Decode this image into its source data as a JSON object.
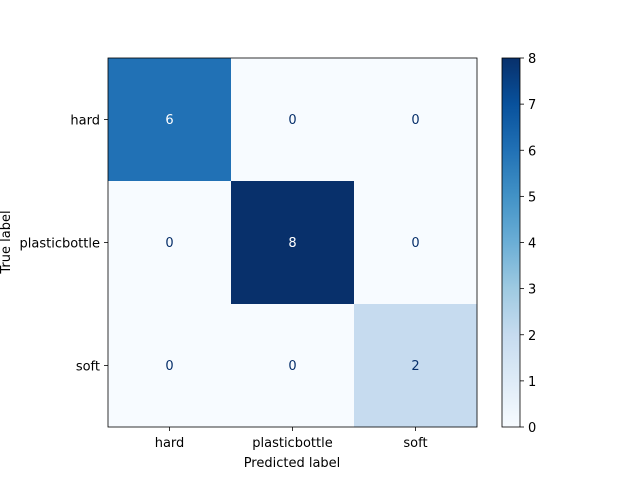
{
  "chart_data": {
    "type": "heatmap",
    "title": "",
    "xlabel": "Predicted label",
    "ylabel": "True label",
    "x_categories": [
      "hard",
      "plasticbottle",
      "soft"
    ],
    "y_categories": [
      "hard",
      "plasticbottle",
      "soft"
    ],
    "values": [
      [
        6,
        0,
        0
      ],
      [
        0,
        8,
        0
      ],
      [
        0,
        0,
        2
      ]
    ],
    "colormap": "Blues",
    "vmin": 0,
    "vmax": 8,
    "colorbar_ticks": [
      0,
      1,
      2,
      3,
      4,
      5,
      6,
      7,
      8
    ],
    "grid": false
  }
}
